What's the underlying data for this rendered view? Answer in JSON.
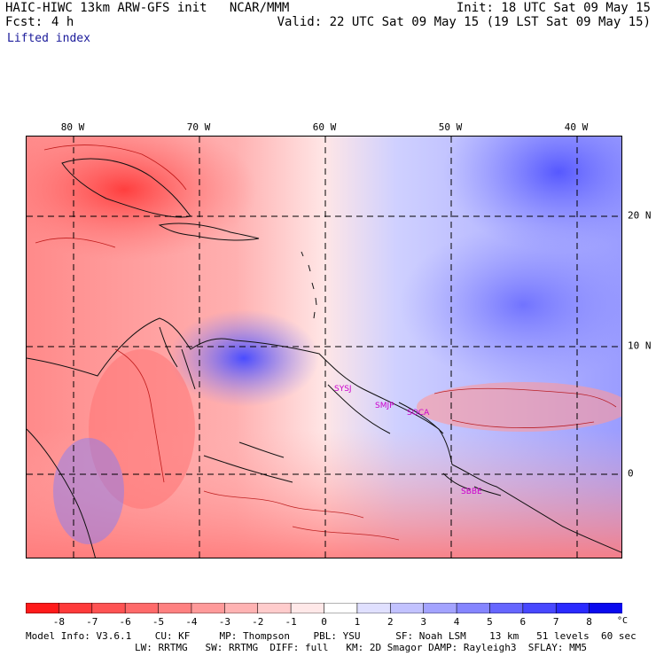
{
  "header": {
    "title": "HAIC-HIWC 13km ARW-GFS init   NCAR/MMM",
    "fcst_label": "Fcst:",
    "fcst_value": "4 h",
    "init": "Init: 18 UTC Sat 09 May 15",
    "valid": "Valid: 22 UTC Sat 09 May 15 (19 LST Sat 09 May 15)",
    "variable": "Lifted index"
  },
  "map": {
    "lon_labels": [
      "80 W",
      "70 W",
      "60 W",
      "50 W",
      "40 W"
    ],
    "lat_labels": [
      "20 N",
      "10 N",
      "0"
    ],
    "sites": [
      "SYSJ",
      "SMJP",
      "SOCA",
      "SBBE"
    ],
    "colors": {
      "negative": "#ff3333",
      "positive": "#3333ee",
      "neutral": "#ffffff"
    }
  },
  "colorbar": {
    "ticks": [
      "-8",
      "-7",
      "-6",
      "-5",
      "-4",
      "-3",
      "-2",
      "-1",
      "0",
      "1",
      "2",
      "3",
      "4",
      "5",
      "6",
      "7",
      "8"
    ],
    "units": "°C",
    "colors": [
      "#ff1a1a",
      "#ff3a3a",
      "#ff5353",
      "#ff6a6a",
      "#ff8181",
      "#ff9a9a",
      "#ffb3b3",
      "#ffcccc",
      "#ffe8e8",
      "#ffffff",
      "#e0e0ff",
      "#c2c2ff",
      "#a3a3ff",
      "#8585ff",
      "#6666ff",
      "#4848ff",
      "#2a2aff",
      "#0a0aee"
    ]
  },
  "footer": {
    "line1": "Model Info: V3.6.1    CU: KF     MP: Thompson    PBL: YSU      SF: Noah LSM    13 km   51 levels  60 sec",
    "line2": "LW: RRTMG   SW: RRTMG  DIFF: full   KM: 2D Smagor DAMP: Rayleigh3  SFLAY: MM5"
  }
}
